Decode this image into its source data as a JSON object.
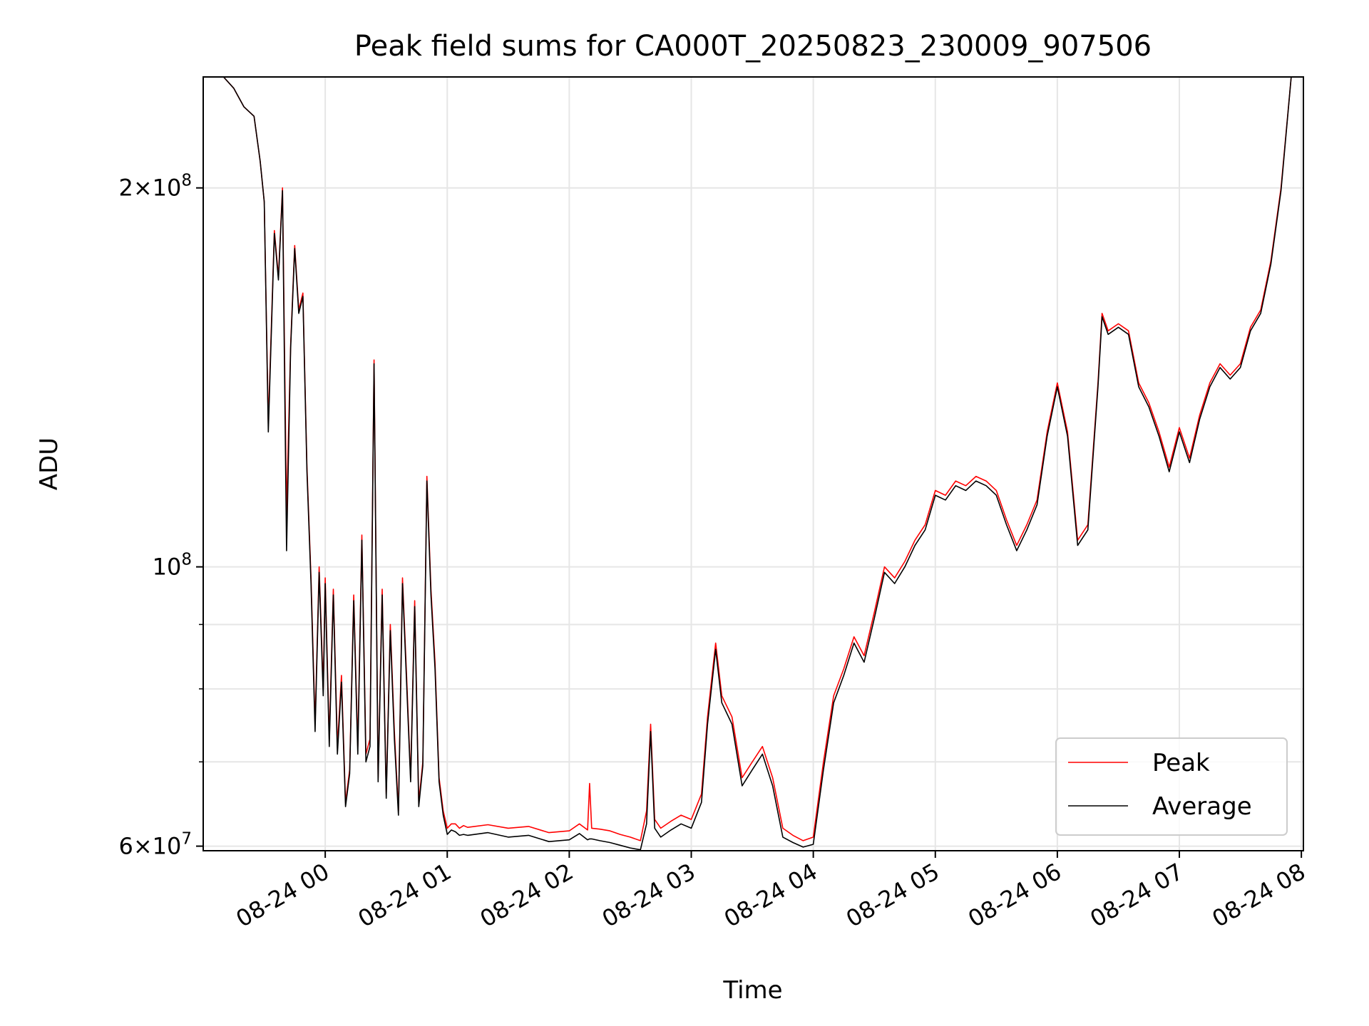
{
  "chart_data": {
    "type": "line",
    "title": "Peak field sums for CA000T_20250823_230009_907506",
    "xlabel": "Time",
    "ylabel": "ADU",
    "yscale": "log",
    "ylim": [
      59500000,
      245000000
    ],
    "xlim": [
      "2025-08-23 23:00",
      "2025-08-24 08:01"
    ],
    "grid": true,
    "legend_position": "lower-right",
    "x_ticks": [
      "08-24 00",
      "08-24 01",
      "08-24 02",
      "08-24 03",
      "08-24 04",
      "08-24 05",
      "08-24 06",
      "08-24 07",
      "08-24 08"
    ],
    "x_tick_times": [
      "2025-08-24 00:00",
      "2025-08-24 01:00",
      "2025-08-24 02:00",
      "2025-08-24 03:00",
      "2025-08-24 04:00",
      "2025-08-24 05:00",
      "2025-08-24 06:00",
      "2025-08-24 07:00",
      "2025-08-24 08:00"
    ],
    "y_major_ticks": [
      {
        "value": 60000000,
        "mantissa": "6",
        "exponent": "7"
      },
      {
        "value": 100000000,
        "mantissa": "",
        "exponent": "8"
      },
      {
        "value": 200000000,
        "mantissa": "2",
        "exponent": "8"
      }
    ],
    "y_minor_ticks": [
      70000000,
      80000000,
      90000000
    ],
    "series": [
      {
        "name": "Peak",
        "color": "#ff0000",
        "x": [
          "2025-08-23 23:00",
          "2025-08-23 23:05",
          "2025-08-23 23:10",
          "2025-08-23 23:15",
          "2025-08-23 23:20",
          "2025-08-23 23:25",
          "2025-08-23 23:28",
          "2025-08-23 23:30",
          "2025-08-23 23:32",
          "2025-08-23 23:35",
          "2025-08-23 23:37",
          "2025-08-23 23:39",
          "2025-08-23 23:41",
          "2025-08-23 23:43",
          "2025-08-23 23:45",
          "2025-08-23 23:47",
          "2025-08-23 23:49",
          "2025-08-23 23:51",
          "2025-08-23 23:53",
          "2025-08-23 23:55",
          "2025-08-23 23:57",
          "2025-08-23 23:59",
          "2025-08-24 00:00",
          "2025-08-24 00:02",
          "2025-08-24 00:04",
          "2025-08-24 00:06",
          "2025-08-24 00:08",
          "2025-08-24 00:10",
          "2025-08-24 00:12",
          "2025-08-24 00:14",
          "2025-08-24 00:16",
          "2025-08-24 00:18",
          "2025-08-24 00:20",
          "2025-08-24 00:22",
          "2025-08-24 00:24",
          "2025-08-24 00:26",
          "2025-08-24 00:28",
          "2025-08-24 00:30",
          "2025-08-24 00:32",
          "2025-08-24 00:34",
          "2025-08-24 00:36",
          "2025-08-24 00:38",
          "2025-08-24 00:40",
          "2025-08-24 00:42",
          "2025-08-24 00:44",
          "2025-08-24 00:46",
          "2025-08-24 00:48",
          "2025-08-24 00:50",
          "2025-08-24 00:52",
          "2025-08-24 00:54",
          "2025-08-24 00:56",
          "2025-08-24 00:58",
          "2025-08-24 01:00",
          "2025-08-24 01:02",
          "2025-08-24 01:04",
          "2025-08-24 01:06",
          "2025-08-24 01:08",
          "2025-08-24 01:10",
          "2025-08-24 01:20",
          "2025-08-24 01:30",
          "2025-08-24 01:40",
          "2025-08-24 01:50",
          "2025-08-24 02:00",
          "2025-08-24 02:05",
          "2025-08-24 02:09",
          "2025-08-24 02:10",
          "2025-08-24 02:11",
          "2025-08-24 02:15",
          "2025-08-24 02:20",
          "2025-08-24 02:25",
          "2025-08-24 02:30",
          "2025-08-24 02:35",
          "2025-08-24 02:38",
          "2025-08-24 02:40",
          "2025-08-24 02:42",
          "2025-08-24 02:45",
          "2025-08-24 02:50",
          "2025-08-24 02:55",
          "2025-08-24 03:00",
          "2025-08-24 03:05",
          "2025-08-24 03:08",
          "2025-08-24 03:12",
          "2025-08-24 03:15",
          "2025-08-24 03:20",
          "2025-08-24 03:25",
          "2025-08-24 03:30",
          "2025-08-24 03:35",
          "2025-08-24 03:40",
          "2025-08-24 03:45",
          "2025-08-24 03:50",
          "2025-08-24 03:55",
          "2025-08-24 04:00",
          "2025-08-24 04:05",
          "2025-08-24 04:10",
          "2025-08-24 04:15",
          "2025-08-24 04:20",
          "2025-08-24 04:25",
          "2025-08-24 04:30",
          "2025-08-24 04:35",
          "2025-08-24 04:40",
          "2025-08-24 04:45",
          "2025-08-24 04:50",
          "2025-08-24 04:55",
          "2025-08-24 05:00",
          "2025-08-24 05:05",
          "2025-08-24 05:10",
          "2025-08-24 05:15",
          "2025-08-24 05:20",
          "2025-08-24 05:25",
          "2025-08-24 05:30",
          "2025-08-24 05:35",
          "2025-08-24 05:40",
          "2025-08-24 05:45",
          "2025-08-24 05:50",
          "2025-08-24 05:55",
          "2025-08-24 06:00",
          "2025-08-24 06:05",
          "2025-08-24 06:10",
          "2025-08-24 06:15",
          "2025-08-24 06:20",
          "2025-08-24 06:22",
          "2025-08-24 06:25",
          "2025-08-24 06:30",
          "2025-08-24 06:35",
          "2025-08-24 06:40",
          "2025-08-24 06:45",
          "2025-08-24 06:50",
          "2025-08-24 06:55",
          "2025-08-24 07:00",
          "2025-08-24 07:05",
          "2025-08-24 07:10",
          "2025-08-24 07:15",
          "2025-08-24 07:20",
          "2025-08-24 07:25",
          "2025-08-24 07:30",
          "2025-08-24 07:35",
          "2025-08-24 07:40",
          "2025-08-24 07:45",
          "2025-08-24 07:50",
          "2025-08-24 07:55",
          "2025-08-24 08:00"
        ],
        "values": [
          245000000,
          245000000,
          245000000,
          240000000,
          232000000,
          228000000,
          210000000,
          195000000,
          130000000,
          185000000,
          170000000,
          200000000,
          110000000,
          150000000,
          180000000,
          160000000,
          165000000,
          120000000,
          98000000,
          75000000,
          100000000,
          80000000,
          98000000,
          73000000,
          96000000,
          72000000,
          82000000,
          65000000,
          69000000,
          95000000,
          72000000,
          106000000,
          71000000,
          73000000,
          146000000,
          68000000,
          96000000,
          66000000,
          90000000,
          74000000,
          64000000,
          98000000,
          82000000,
          68000000,
          94000000,
          65000000,
          70000000,
          118000000,
          96000000,
          84000000,
          68000000,
          64000000,
          62000000,
          62500000,
          62500000,
          62000000,
          62300000,
          62100000,
          62400000,
          62000000,
          62200000,
          61500000,
          61700000,
          62500000,
          61800000,
          67300000,
          62000000,
          61900000,
          61700000,
          61300000,
          61000000,
          60600000,
          64000000,
          75000000,
          63000000,
          62000000,
          62800000,
          63500000,
          63000000,
          66000000,
          76000000,
          87000000,
          79000000,
          76000000,
          68000000,
          70000000,
          72000000,
          68000000,
          62000000,
          61200000,
          60600000,
          61000000,
          70000000,
          79000000,
          83000000,
          88000000,
          85000000,
          92000000,
          100000000,
          98000000,
          101000000,
          105000000,
          108000000,
          115000000,
          114000000,
          117000000,
          116000000,
          118000000,
          117000000,
          115000000,
          109000000,
          104000000,
          108000000,
          113000000,
          128000000,
          140000000,
          128000000,
          105000000,
          108000000,
          140000000,
          159000000,
          154000000,
          156000000,
          154000000,
          140000000,
          135000000,
          128000000,
          120000000,
          129000000,
          122000000,
          132000000,
          140000000,
          145000000,
          142000000,
          145000000,
          155000000,
          160000000,
          175000000,
          200000000,
          245000000,
          245000000
        ]
      },
      {
        "name": "Average",
        "color": "#000000",
        "x": [
          "2025-08-23 23:00",
          "2025-08-23 23:05",
          "2025-08-23 23:10",
          "2025-08-23 23:15",
          "2025-08-23 23:20",
          "2025-08-23 23:25",
          "2025-08-23 23:28",
          "2025-08-23 23:30",
          "2025-08-23 23:32",
          "2025-08-23 23:35",
          "2025-08-23 23:37",
          "2025-08-23 23:39",
          "2025-08-23 23:41",
          "2025-08-23 23:43",
          "2025-08-23 23:45",
          "2025-08-23 23:47",
          "2025-08-23 23:49",
          "2025-08-23 23:51",
          "2025-08-23 23:53",
          "2025-08-23 23:55",
          "2025-08-23 23:57",
          "2025-08-23 23:59",
          "2025-08-24 00:00",
          "2025-08-24 00:02",
          "2025-08-24 00:04",
          "2025-08-24 00:06",
          "2025-08-24 00:08",
          "2025-08-24 00:10",
          "2025-08-24 00:12",
          "2025-08-24 00:14",
          "2025-08-24 00:16",
          "2025-08-24 00:18",
          "2025-08-24 00:20",
          "2025-08-24 00:22",
          "2025-08-24 00:24",
          "2025-08-24 00:26",
          "2025-08-24 00:28",
          "2025-08-24 00:30",
          "2025-08-24 00:32",
          "2025-08-24 00:34",
          "2025-08-24 00:36",
          "2025-08-24 00:38",
          "2025-08-24 00:40",
          "2025-08-24 00:42",
          "2025-08-24 00:44",
          "2025-08-24 00:46",
          "2025-08-24 00:48",
          "2025-08-24 00:50",
          "2025-08-24 00:52",
          "2025-08-24 00:54",
          "2025-08-24 00:56",
          "2025-08-24 00:58",
          "2025-08-24 01:00",
          "2025-08-24 01:02",
          "2025-08-24 01:04",
          "2025-08-24 01:06",
          "2025-08-24 01:08",
          "2025-08-24 01:10",
          "2025-08-24 01:20",
          "2025-08-24 01:30",
          "2025-08-24 01:40",
          "2025-08-24 01:50",
          "2025-08-24 02:00",
          "2025-08-24 02:05",
          "2025-08-24 02:09",
          "2025-08-24 02:10",
          "2025-08-24 02:11",
          "2025-08-24 02:15",
          "2025-08-24 02:20",
          "2025-08-24 02:25",
          "2025-08-24 02:30",
          "2025-08-24 02:35",
          "2025-08-24 02:38",
          "2025-08-24 02:40",
          "2025-08-24 02:42",
          "2025-08-24 02:45",
          "2025-08-24 02:50",
          "2025-08-24 02:55",
          "2025-08-24 03:00",
          "2025-08-24 03:05",
          "2025-08-24 03:08",
          "2025-08-24 03:12",
          "2025-08-24 03:15",
          "2025-08-24 03:20",
          "2025-08-24 03:25",
          "2025-08-24 03:30",
          "2025-08-24 03:35",
          "2025-08-24 03:40",
          "2025-08-24 03:45",
          "2025-08-24 03:50",
          "2025-08-24 03:55",
          "2025-08-24 04:00",
          "2025-08-24 04:05",
          "2025-08-24 04:10",
          "2025-08-24 04:15",
          "2025-08-24 04:20",
          "2025-08-24 04:25",
          "2025-08-24 04:30",
          "2025-08-24 04:35",
          "2025-08-24 04:40",
          "2025-08-24 04:45",
          "2025-08-24 04:50",
          "2025-08-24 04:55",
          "2025-08-24 05:00",
          "2025-08-24 05:05",
          "2025-08-24 05:10",
          "2025-08-24 05:15",
          "2025-08-24 05:20",
          "2025-08-24 05:25",
          "2025-08-24 05:30",
          "2025-08-24 05:35",
          "2025-08-24 05:40",
          "2025-08-24 05:45",
          "2025-08-24 05:50",
          "2025-08-24 05:55",
          "2025-08-24 06:00",
          "2025-08-24 06:05",
          "2025-08-24 06:10",
          "2025-08-24 06:15",
          "2025-08-24 06:20",
          "2025-08-24 06:22",
          "2025-08-24 06:25",
          "2025-08-24 06:30",
          "2025-08-24 06:35",
          "2025-08-24 06:40",
          "2025-08-24 06:45",
          "2025-08-24 06:50",
          "2025-08-24 06:55",
          "2025-08-24 07:00",
          "2025-08-24 07:05",
          "2025-08-24 07:10",
          "2025-08-24 07:15",
          "2025-08-24 07:20",
          "2025-08-24 07:25",
          "2025-08-24 07:30",
          "2025-08-24 07:35",
          "2025-08-24 07:40",
          "2025-08-24 07:45",
          "2025-08-24 07:50",
          "2025-08-24 07:55",
          "2025-08-24 08:00"
        ],
        "values": [
          245000000,
          245000000,
          245000000,
          240000000,
          232000000,
          228000000,
          210000000,
          195000000,
          128000000,
          184000000,
          169000000,
          199000000,
          103000000,
          149000000,
          179000000,
          159000000,
          164000000,
          119000000,
          97000000,
          74000000,
          99000000,
          79000000,
          97000000,
          72000000,
          95000000,
          71000000,
          81000000,
          64500000,
          68500000,
          94000000,
          71000000,
          105000000,
          70000000,
          72000000,
          145000000,
          67500000,
          95000000,
          65500000,
          89000000,
          73000000,
          63500000,
          97000000,
          81000000,
          67500000,
          93000000,
          64500000,
          69500000,
          117000000,
          95000000,
          83000000,
          67500000,
          63500000,
          61300000,
          61800000,
          61600000,
          61200000,
          61300000,
          61200000,
          61500000,
          61000000,
          61200000,
          60500000,
          60700000,
          61400000,
          60700000,
          60800000,
          60800000,
          60600000,
          60400000,
          60100000,
          59800000,
          59600000,
          62500000,
          74000000,
          62000000,
          61000000,
          61800000,
          62500000,
          62000000,
          65000000,
          75000000,
          86000000,
          78000000,
          75000000,
          67000000,
          69000000,
          71000000,
          67000000,
          61000000,
          60400000,
          59900000,
          60200000,
          69000000,
          78000000,
          82000000,
          87000000,
          84000000,
          91000000,
          99000000,
          97000000,
          100000000,
          104000000,
          107000000,
          114000000,
          113000000,
          116000000,
          115000000,
          117000000,
          116000000,
          114000000,
          108000000,
          103000000,
          107000000,
          112000000,
          127000000,
          139000000,
          127000000,
          104000000,
          107000000,
          139000000,
          158000000,
          153000000,
          155000000,
          153000000,
          139000000,
          134000000,
          127000000,
          119000000,
          128000000,
          121000000,
          131000000,
          139000000,
          144000000,
          141000000,
          144000000,
          154000000,
          159000000,
          174000000,
          199000000,
          245000000,
          245000000
        ]
      }
    ]
  }
}
